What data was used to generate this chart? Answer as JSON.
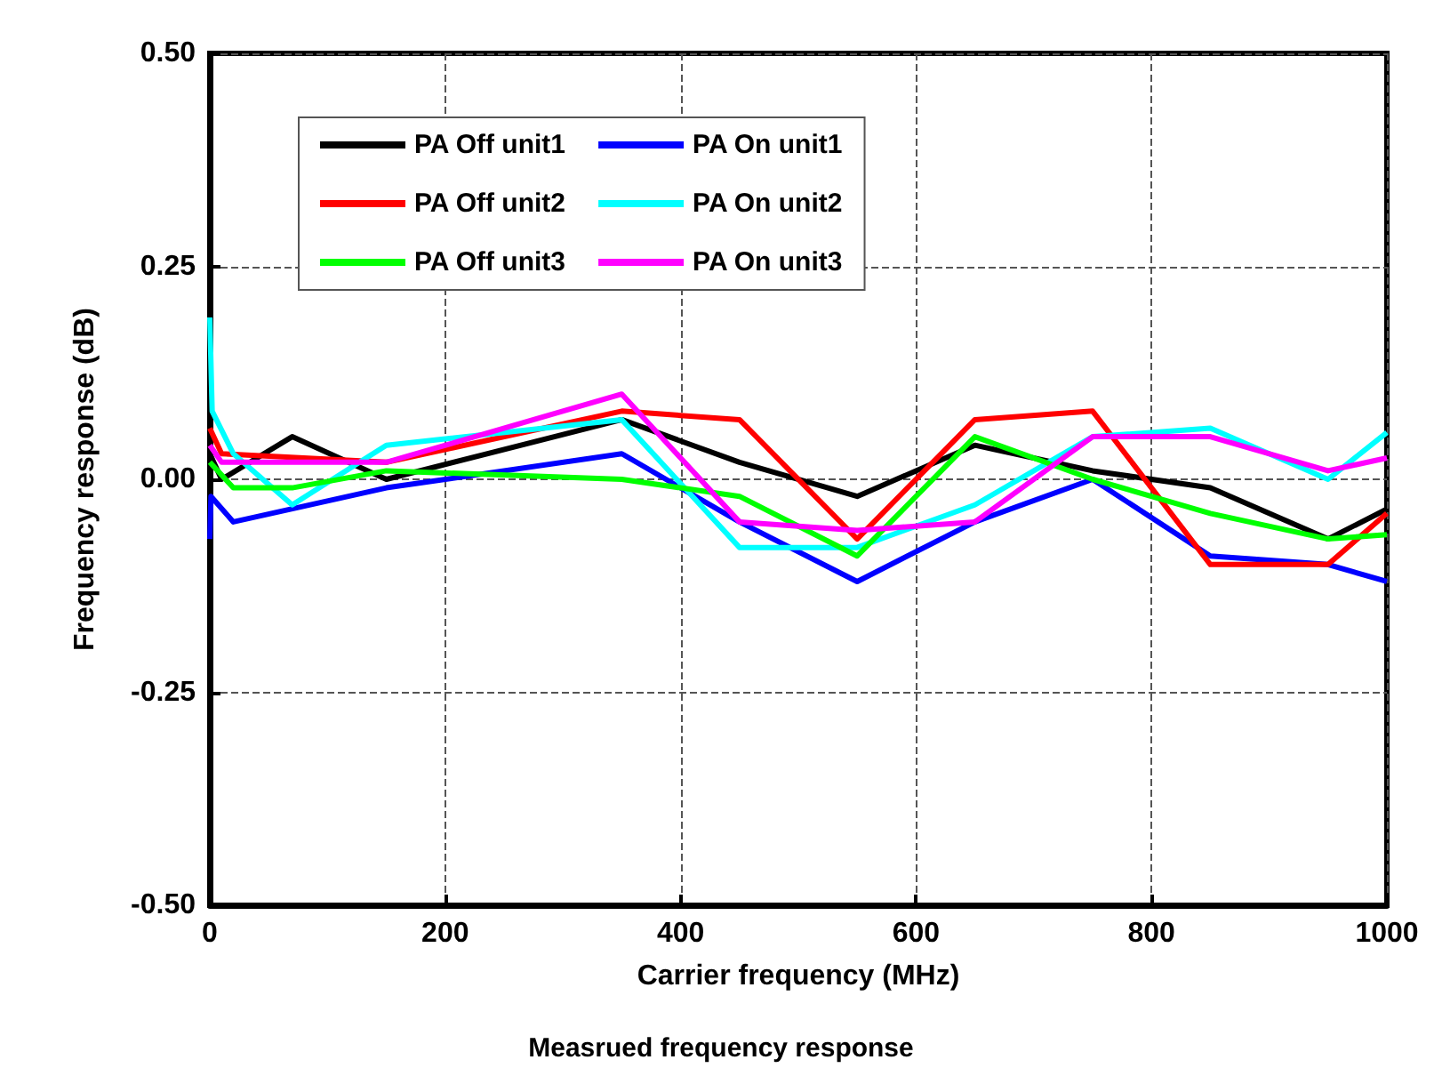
{
  "chart_data": {
    "type": "line",
    "xlabel": "Carrier frequency (MHz)",
    "ylabel": "Frequency response (dB)",
    "annotations": [
      "Measrued frequency response"
    ],
    "xlim": [
      0,
      1000
    ],
    "xticks": [
      0,
      200,
      400,
      600,
      800,
      1000
    ],
    "ylim": [
      -0.5,
      0.5
    ],
    "yticks": [
      {
        "value": -0.5,
        "label": "-0.50"
      },
      {
        "value": -0.25,
        "label": "-0.25"
      },
      {
        "value": 0,
        "label": "0.00"
      },
      {
        "value": 0.25,
        "label": "0.25"
      },
      {
        "value": 0.5,
        "label": "0.50"
      }
    ],
    "grid": true,
    "legend": "top left",
    "marker": "none",
    "line_style": "solid",
    "series": [
      {
        "name": "PA Off unit1",
        "color": "#000000",
        "x": [
          0,
          10,
          70,
          150,
          350,
          450,
          550,
          650,
          750,
          850,
          950,
          1000
        ],
        "values": [
          0.03,
          0.0,
          0.05,
          0.0,
          0.07,
          0.02,
          -0.02,
          0.04,
          0.01,
          -0.01,
          -0.07,
          -0.035
        ]
      },
      {
        "name": "PA On unit1",
        "color": "#0000ff",
        "x": [
          0,
          1,
          20,
          150,
          350,
          450,
          550,
          650,
          750,
          850,
          950,
          1000
        ],
        "values": [
          -0.07,
          -0.02,
          -0.05,
          -0.01,
          0.03,
          -0.05,
          -0.12,
          -0.05,
          0.0,
          -0.09,
          -0.1,
          -0.12
        ]
      },
      {
        "name": "PA Off unit2",
        "color": "#ff0000",
        "x": [
          0,
          10,
          150,
          350,
          450,
          550,
          650,
          750,
          850,
          950,
          1000
        ],
        "values": [
          0.06,
          0.03,
          0.02,
          0.08,
          0.07,
          -0.07,
          0.07,
          0.08,
          -0.1,
          -0.1,
          -0.04
        ]
      },
      {
        "name": "PA On unit2",
        "color": "#00ffff",
        "x": [
          0,
          2,
          20,
          70,
          150,
          350,
          450,
          550,
          650,
          750,
          850,
          950,
          1000
        ],
        "values": [
          0.19,
          0.08,
          0.03,
          -0.03,
          0.04,
          0.07,
          -0.08,
          -0.08,
          -0.03,
          0.05,
          0.06,
          0.0,
          0.055
        ]
      },
      {
        "name": "PA Off unit3",
        "color": "#00ff00",
        "x": [
          0,
          20,
          70,
          150,
          350,
          450,
          550,
          650,
          750,
          850,
          950,
          1000
        ],
        "values": [
          0.02,
          -0.01,
          -0.01,
          0.01,
          0.0,
          -0.02,
          -0.09,
          0.05,
          0.0,
          -0.04,
          -0.07,
          -0.065
        ]
      },
      {
        "name": "PA On unit3",
        "color": "#ff00ff",
        "x": [
          0,
          10,
          150,
          350,
          450,
          550,
          650,
          750,
          850,
          950,
          1000
        ],
        "values": [
          0.04,
          0.02,
          0.02,
          0.1,
          -0.05,
          -0.06,
          -0.05,
          0.05,
          0.05,
          0.01,
          0.025
        ]
      }
    ]
  }
}
